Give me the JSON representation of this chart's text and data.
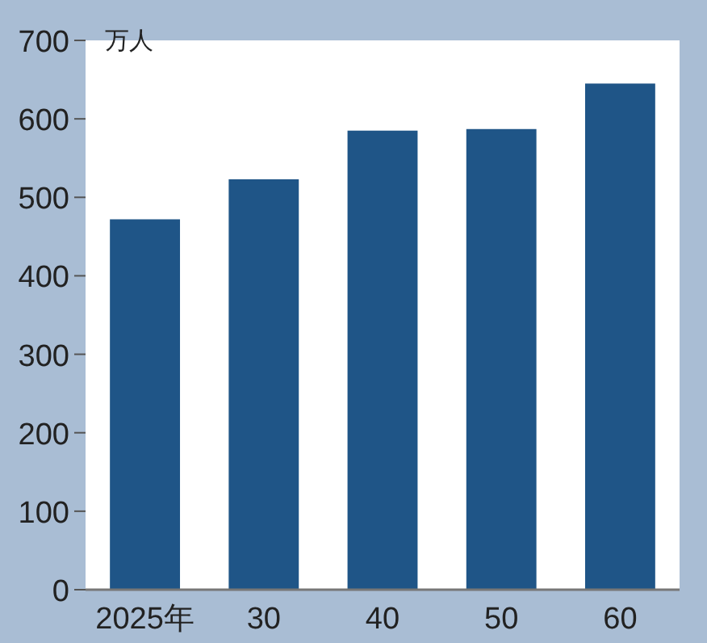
{
  "chart_data": {
    "type": "bar",
    "ylabel": "万人",
    "categories": [
      "2025年",
      "30",
      "40",
      "50",
      "60"
    ],
    "values": [
      472,
      523,
      585,
      587,
      645
    ],
    "color": "#1f5587",
    "ylim": [
      0,
      700
    ],
    "yticks": [
      0,
      100,
      200,
      300,
      400,
      500,
      600,
      700
    ]
  }
}
